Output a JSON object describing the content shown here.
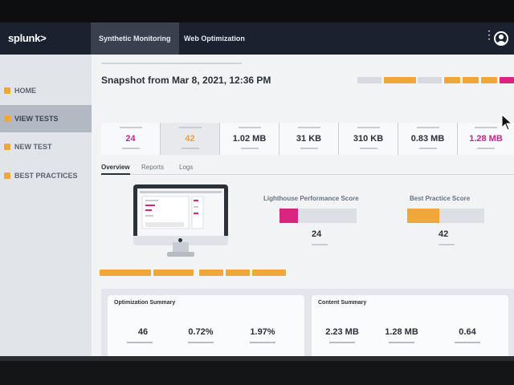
{
  "app": {
    "brand": "splunk>",
    "nav_tabs": [
      {
        "label": "Synthetic Monitoring",
        "active": true
      },
      {
        "label": "Web Optimization",
        "active": false
      }
    ],
    "kebab_icon": "kebab-menu-icon",
    "avatar_icon": "user-avatar-icon"
  },
  "sidebar": {
    "items": [
      {
        "label": "HOME",
        "active": false
      },
      {
        "label": "VIEW TESTS",
        "active": true
      },
      {
        "label": "NEW TEST",
        "active": false
      },
      {
        "label": "BEST PRACTICES",
        "active": false
      }
    ]
  },
  "snapshot": {
    "title": "Snapshot from Mar 8, 2021, 12:36 PM"
  },
  "stats": [
    {
      "value": "24",
      "color": "pink"
    },
    {
      "value": "42",
      "color": "orange"
    },
    {
      "value": "1.02 MB",
      "color": "dark"
    },
    {
      "value": "31 KB",
      "color": "dark"
    },
    {
      "value": "310 KB",
      "color": "dark"
    },
    {
      "value": "0.83 MB",
      "color": "dark"
    },
    {
      "value": "1.28 MB",
      "color": "pink"
    }
  ],
  "tabs": [
    {
      "label": "Overview",
      "active": true
    },
    {
      "label": "Reports",
      "active": false
    },
    {
      "label": "Logs",
      "active": false
    }
  ],
  "scores": {
    "lighthouse": {
      "label": "Lighthouse Performance Score",
      "value": "24",
      "fraction": 0.24,
      "color": "#d9257f"
    },
    "best_practice": {
      "label": "Best Practice Score",
      "value": "42",
      "fraction": 0.42,
      "color": "#f0a73a"
    }
  },
  "optimization_summary": {
    "title": "Optimization Summary",
    "values": [
      "46",
      "0.72%",
      "1.97%"
    ]
  },
  "content_summary": {
    "title": "Content Summary",
    "values": [
      "2.23 MB",
      "1.28 MB",
      "0.64"
    ]
  },
  "colors": {
    "accent_orange": "#f0a73a",
    "accent_pink": "#d9257f",
    "nav_bg": "#1a2230"
  }
}
